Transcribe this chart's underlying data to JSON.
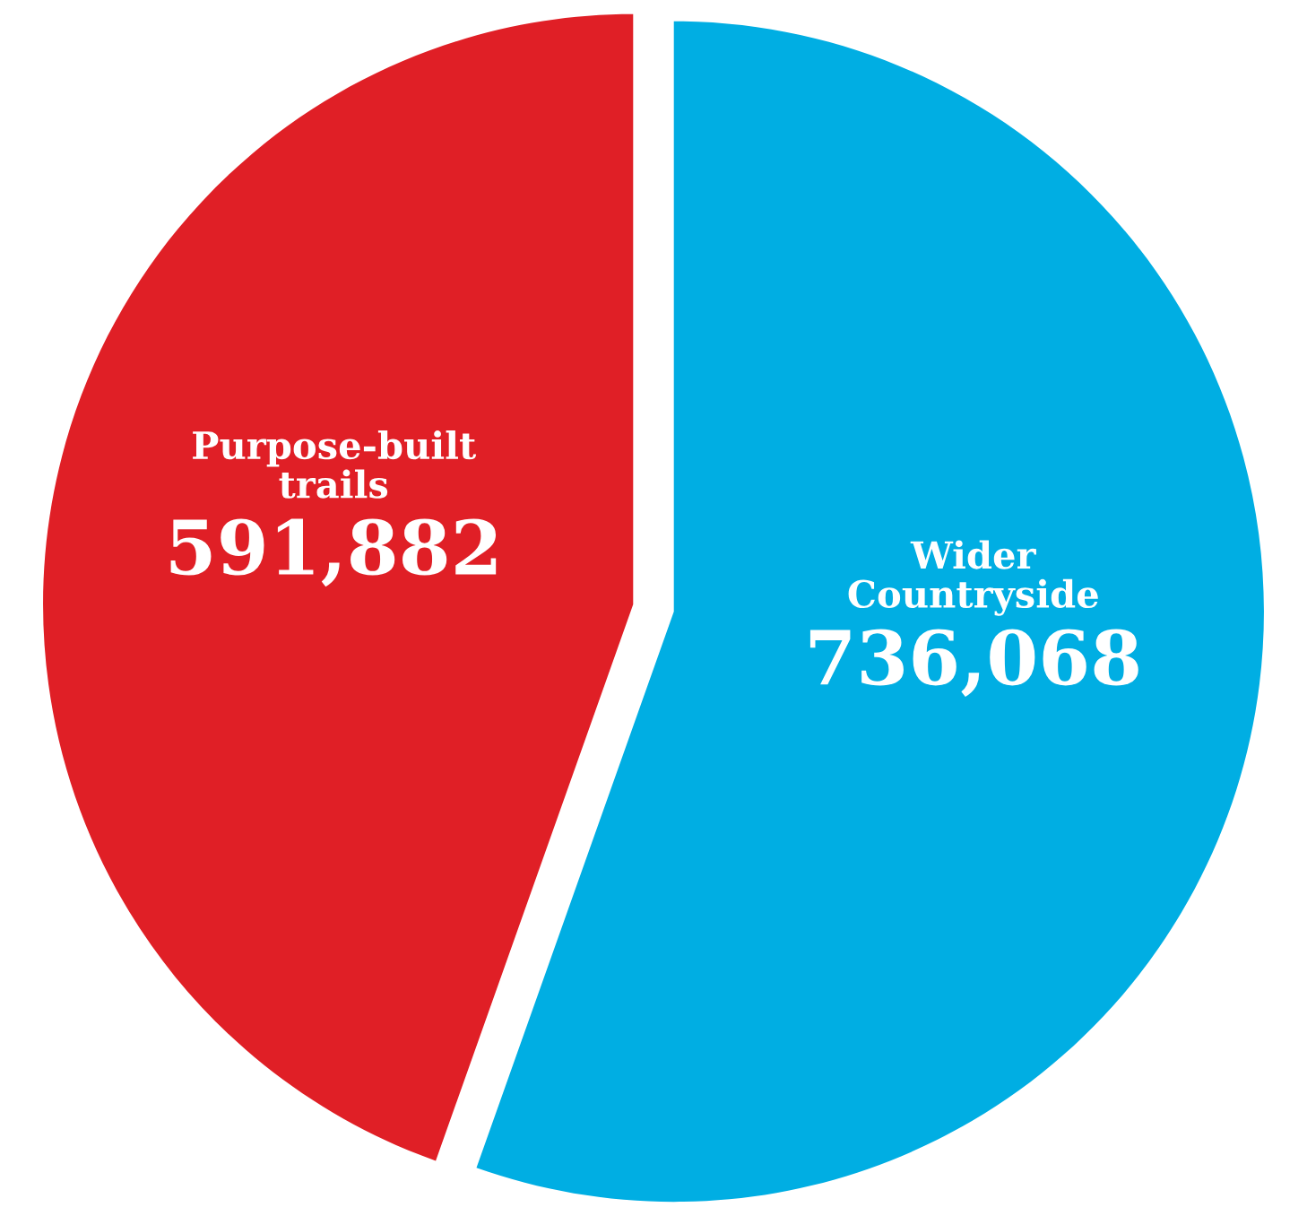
{
  "chart_data": {
    "type": "pie",
    "categories": [
      "Purpose-built trails",
      "Wider Countryside"
    ],
    "values": [
      591882,
      736068
    ],
    "colors": [
      "#e01f26",
      "#00aee3"
    ],
    "value_labels": [
      "591,882",
      "736,068"
    ],
    "legend": false
  }
}
